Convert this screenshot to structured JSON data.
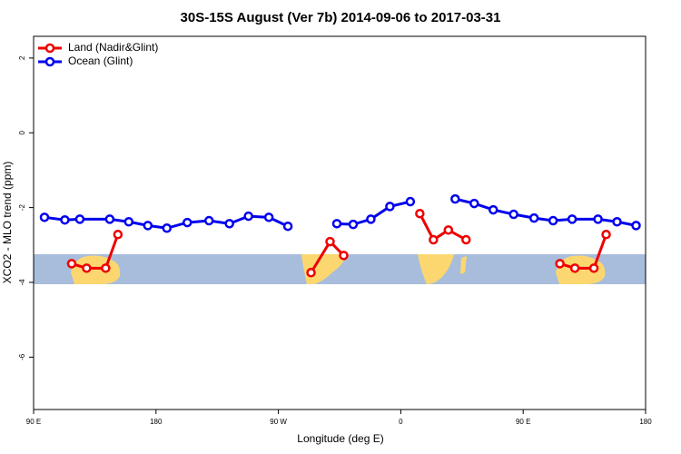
{
  "chart_data": {
    "type": "line",
    "title": "30S-15S August (Ver 7b)   2014-09-06 to 2017-03-31",
    "x_label": "Longitude (deg E)",
    "y_label": "XCO2 - MLO trend (ppm)",
    "xlim": [
      90,
      540
    ],
    "xticks": [
      {
        "value": 90,
        "label": "90 E"
      },
      180,
      {
        "value": 270,
        "label": "90 W"
      },
      {
        "value": 360,
        "label": "0"
      },
      {
        "value": 450,
        "label": "90 E"
      },
      {
        "value": 540,
        "label": "180"
      }
    ],
    "ylim": [
      -7.4,
      2.58
    ],
    "yticks": [
      -6,
      -4,
      -2,
      0,
      2
    ],
    "legend": "top-left",
    "series": [
      {
        "name": "Land (Nadir&Glint)",
        "color": "#ee0000",
        "x": [
          118,
          129,
          143,
          152,
          200,
          294,
          308,
          318,
          340,
          374,
          384,
          395,
          408,
          440,
          477,
          488,
          502,
          511
        ],
        "values": [
          -3.5,
          -3.62,
          -3.62,
          -2.72,
          null,
          -3.74,
          -2.91,
          -3.28,
          null,
          -2.16,
          -2.86,
          -2.6,
          -2.86,
          null,
          -3.5,
          -3.62,
          -3.62,
          -2.72
        ]
      },
      {
        "name": "Ocean (Glint)",
        "color": "#0000ee",
        "x": [
          98,
          113,
          124,
          146,
          160,
          174,
          188,
          203,
          219,
          234,
          248,
          263,
          277,
          295,
          313,
          325,
          338,
          352,
          367,
          383,
          400,
          414,
          428,
          443,
          458,
          472,
          486,
          505,
          519,
          533
        ],
        "values": [
          -2.26,
          -2.33,
          -2.31,
          -2.31,
          -2.38,
          -2.48,
          -2.55,
          -2.4,
          -2.35,
          -2.43,
          -2.23,
          -2.26,
          -2.5,
          null,
          -2.43,
          -2.45,
          -2.31,
          -1.97,
          -1.84,
          null,
          -1.77,
          -1.89,
          -2.06,
          -2.18,
          -2.28,
          -2.35,
          -2.31,
          -2.31,
          -2.38,
          -2.48
        ]
      }
    ]
  }
}
